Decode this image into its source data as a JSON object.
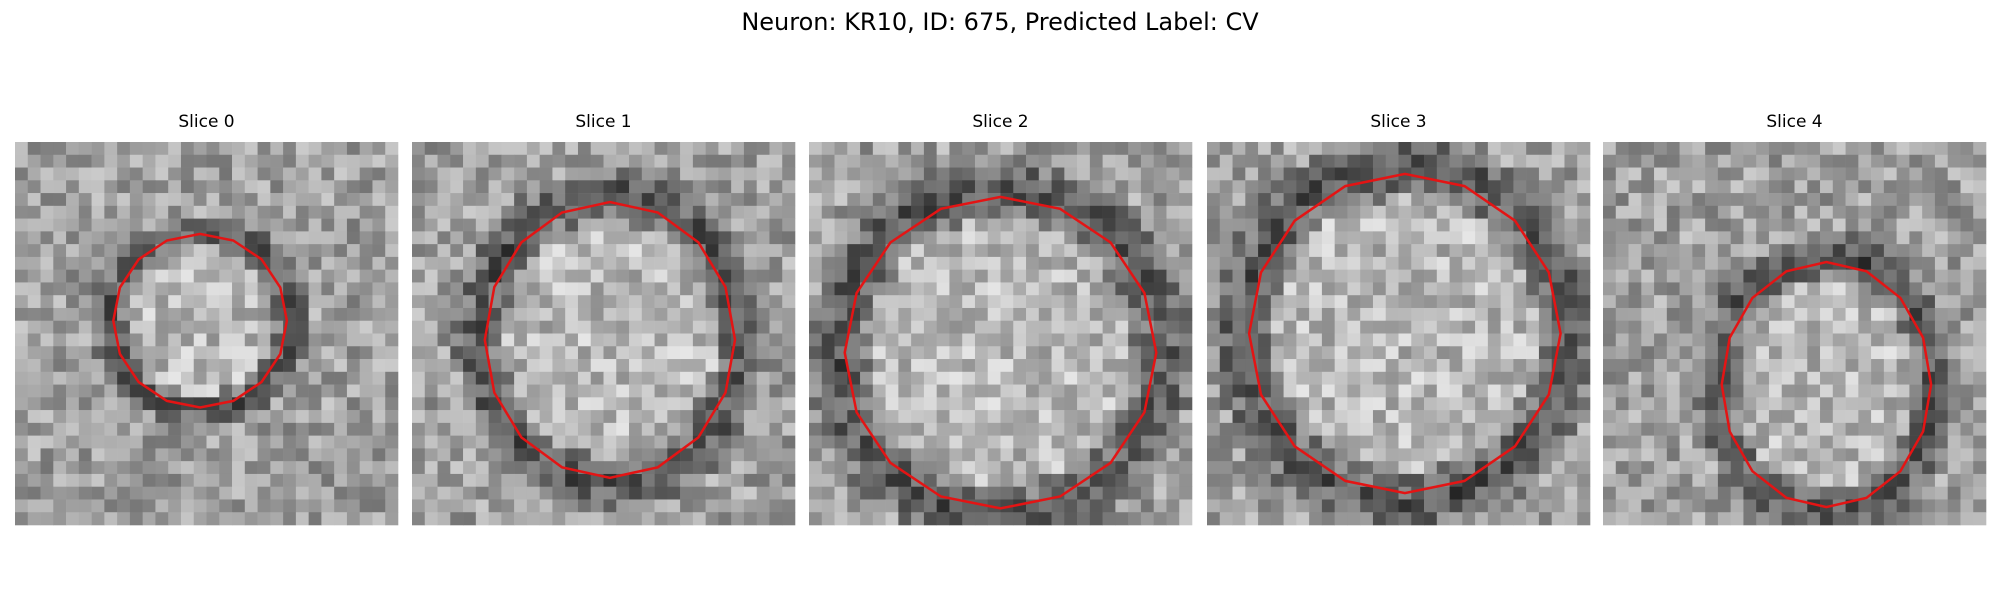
{
  "title": "Neuron: KR10, ID: 675, Predicted Label: CV",
  "panels": [
    {
      "title": "Slice 0"
    },
    {
      "title": "Slice 1"
    },
    {
      "title": "Slice 2"
    },
    {
      "title": "Slice 3"
    },
    {
      "title": "Slice 4"
    }
  ]
}
